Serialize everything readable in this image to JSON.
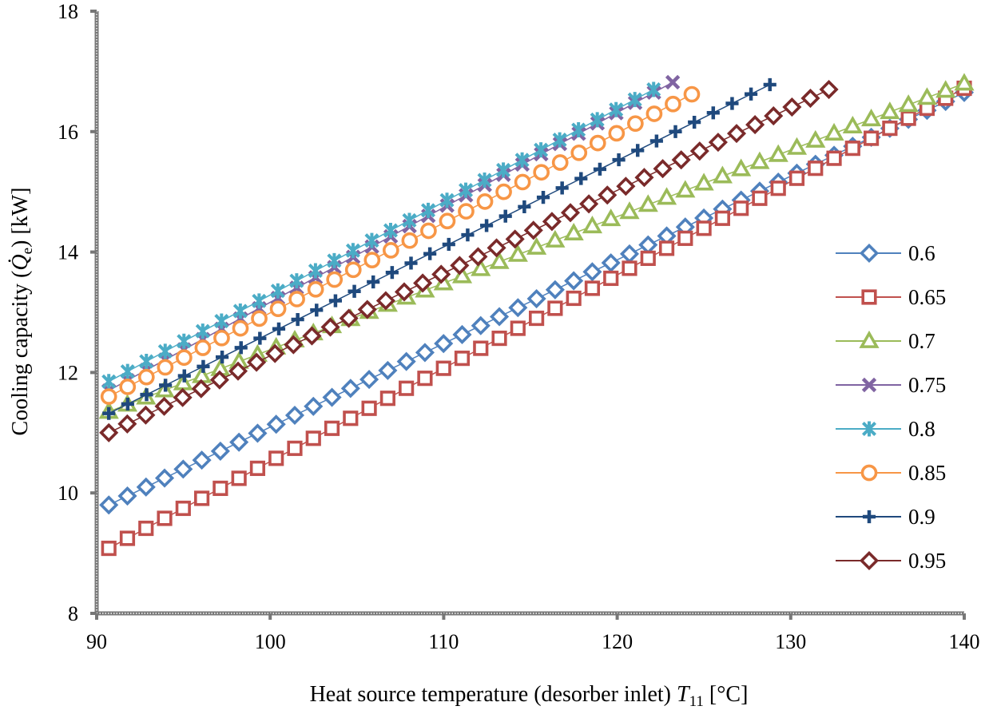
{
  "chart_data": {
    "type": "line",
    "title": "",
    "xlabel": "Heat source temperature (desorber inlet) T11 [°C]",
    "xlabel_parts": {
      "prefix": "Heat source temperature (desorber inlet) ",
      "var": "T",
      "sub": "11",
      "suffix": " [°C]"
    },
    "ylabel": "Cooling capacity (Q̇e) [kW]",
    "ylabel_parts": {
      "prefix": "Cooling capacity (",
      "var": "Q̇",
      "sub": "e",
      "suffix": ") [kW]"
    },
    "xlim": [
      90,
      140
    ],
    "ylim": [
      8,
      18
    ],
    "xticks": [
      90,
      100,
      110,
      120,
      130,
      140
    ],
    "yticks": [
      8,
      10,
      12,
      14,
      16,
      18
    ],
    "grid": false,
    "legend_position": "right",
    "series": [
      {
        "name": "0.6",
        "marker": "diamond",
        "color": "#4F81BD",
        "x_range": [
          90.7,
          140
        ],
        "y_range": [
          9.8,
          16.65
        ]
      },
      {
        "name": "0.65",
        "marker": "square",
        "color": "#C0504D",
        "x_range": [
          90.7,
          140
        ],
        "y_range": [
          9.08,
          16.72
        ]
      },
      {
        "name": "0.7",
        "marker": "triangle",
        "color": "#9BBB59",
        "x_range": [
          90.7,
          140
        ],
        "y_range": [
          11.35,
          16.8
        ]
      },
      {
        "name": "0.75",
        "marker": "x",
        "color": "#8064A2",
        "x_range": [
          90.7,
          123.2
        ],
        "y_range": [
          11.7,
          16.82
        ]
      },
      {
        "name": "0.8",
        "marker": "star",
        "color": "#4BACC6",
        "x_range": [
          90.7,
          122.1
        ],
        "y_range": [
          11.85,
          16.7
        ]
      },
      {
        "name": "0.85",
        "marker": "circle",
        "color": "#F79646",
        "x_range": [
          90.7,
          124.3
        ],
        "y_range": [
          11.6,
          16.62
        ]
      },
      {
        "name": "0.9",
        "marker": "plus",
        "color": "#1F497D",
        "x_range": [
          90.7,
          128.8
        ],
        "y_range": [
          11.32,
          16.78
        ]
      },
      {
        "name": "0.95",
        "marker": "diamond",
        "color": "#7A2A2A",
        "x_range": [
          90.7,
          132.2
        ],
        "y_range": [
          11.0,
          16.7
        ]
      }
    ]
  }
}
